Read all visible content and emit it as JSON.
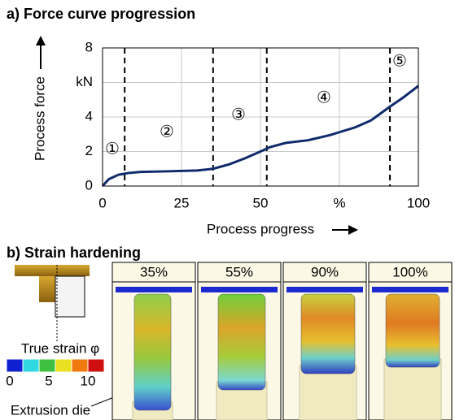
{
  "chart_data": {
    "type": "line",
    "title": "a) Force curve progression",
    "x_label": "Process progress",
    "y_label": "Process force",
    "x": [
      0,
      2,
      5,
      8,
      12,
      20,
      30,
      35,
      40,
      45,
      50,
      53,
      58,
      65,
      72,
      80,
      85,
      88,
      91,
      95,
      100
    ],
    "values": [
      0,
      0.4,
      0.65,
      0.75,
      0.82,
      0.85,
      0.9,
      1.0,
      1.25,
      1.6,
      2.0,
      2.25,
      2.5,
      2.65,
      2.95,
      3.4,
      3.8,
      4.2,
      4.6,
      5.1,
      5.8
    ],
    "color": "#0f2b6b",
    "xlim": [
      0,
      100
    ],
    "xticks": [
      0,
      25,
      50,
      {
        "value": 75,
        "label": "%"
      },
      100
    ],
    "ylim": [
      0,
      8
    ],
    "yticks": [
      0,
      2,
      4,
      {
        "value": 6,
        "label": "kN"
      },
      8
    ],
    "grid": true,
    "phase_boundaries": [
      7,
      35,
      52,
      91
    ],
    "annotations": [
      "①",
      "②",
      "③",
      "④",
      "⑤"
    ]
  },
  "strain_panel": {
    "title": "b) Strain hardening",
    "frames": [
      "35%",
      "55%",
      "90%",
      "100%"
    ],
    "legend_title": "True strain φ",
    "legend_labels": [
      "0",
      "5",
      "10"
    ],
    "die_label": "Extrusion die"
  }
}
